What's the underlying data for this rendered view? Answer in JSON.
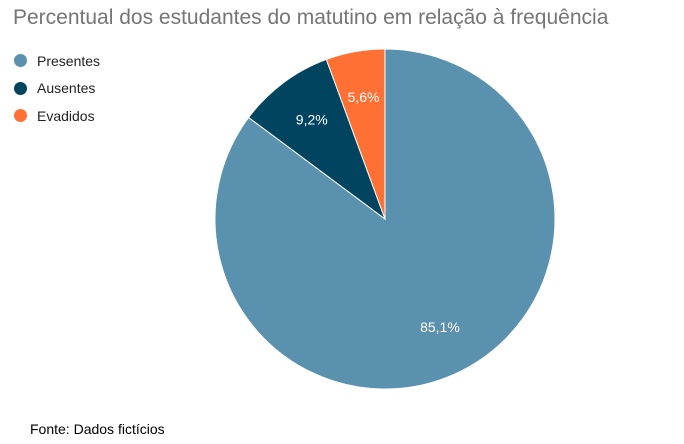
{
  "chart_data": {
    "type": "pie",
    "title": "Percentual dos estudantes do matutino em relação à frequência",
    "categories": [
      "Presentes",
      "Ausentes",
      "Evadidos"
    ],
    "values": [
      85.1,
      9.2,
      5.6
    ],
    "data_labels": [
      "85,1%",
      "9,2%",
      "5,6%"
    ],
    "colors": [
      "#5a91af",
      "#00445f",
      "#ff7035"
    ],
    "legend_position": "top-left",
    "start_angle": "12 o'clock",
    "direction": "clockwise"
  },
  "footer": {
    "source": "Fonte: Dados fictícios"
  }
}
